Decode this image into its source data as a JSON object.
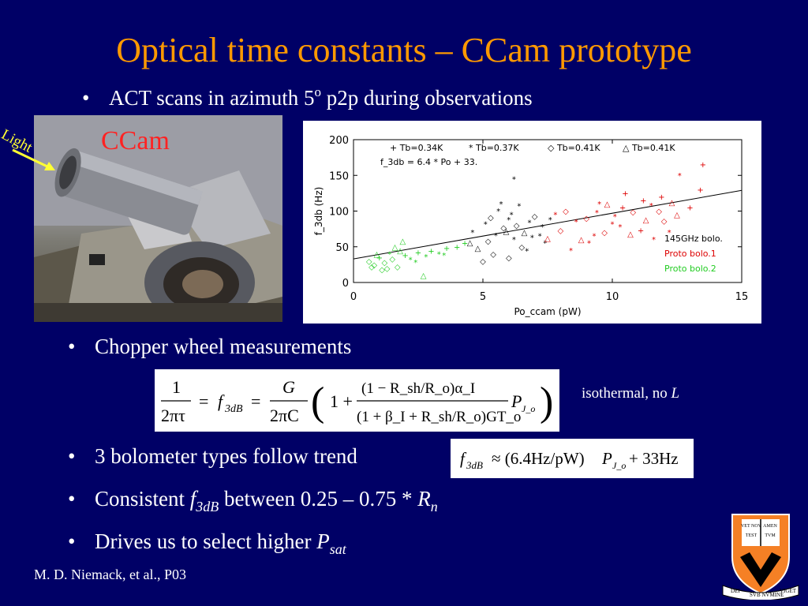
{
  "slide": {
    "title": "Optical time constants – CCam prototype",
    "footer": "M. D.  Niemack, et al., P03",
    "bullet_char": "•"
  },
  "bullets": {
    "b1": {
      "pre": "ACT scans in azimuth 5",
      "sup": "o",
      "post": " p2p during observations"
    },
    "b2": "Chopper wheel measurements",
    "b3": "3 bolometer types follow trend",
    "b4": {
      "pre": "Consistent ",
      "var": "f",
      "sub": "3dB",
      "mid": " between 0.25 – 0.75 * ",
      "var2": "R",
      "sub2": "n"
    },
    "b5": {
      "pre": "Drives us to select higher ",
      "var": "P",
      "sub": "sat"
    }
  },
  "photo": {
    "light_label": "Light",
    "ccam_label": "CCam",
    "arrow_color": "#ffff33",
    "label_color": "#ff2222"
  },
  "equations": {
    "eq1_note_pre": "isothermal, no ",
    "eq1_note_var": "L",
    "eq1": {
      "one": "1",
      "two_pi_tau": "2πτ",
      "eq": "=",
      "f": "f",
      "f_sub": "3dB",
      "G": "G",
      "two_pi_C": "2πC",
      "num": "(1 − R_sh/R_o)α_I",
      "den": "(1 + β_I + R_sh/R_o)GT_o",
      "P": "P",
      "P_sub": "J_o",
      "one_plus": "1 +"
    },
    "eq2": {
      "f": "f",
      "f_sub": "3dB",
      "approx": "≈ (6.4Hz/pW)",
      "P": "P",
      "P_sub": "J_o",
      "tail": "+ 33Hz"
    }
  },
  "chart_data": {
    "type": "scatter",
    "xlabel": "Po_ccam (pW)",
    "ylabel": "f_3db (Hz)",
    "xlim": [
      0,
      15
    ],
    "ylim": [
      0,
      200
    ],
    "xticks": [
      0,
      5,
      10,
      15
    ],
    "yticks": [
      0,
      50,
      100,
      150,
      200
    ],
    "legend_top": [
      "+ Tb=0.34K",
      "* Tb=0.37K",
      "◇ Tb=0.41K",
      "△ Tb=0.41K"
    ],
    "fit_label": "f_3db =   6.4 * Po + 33.",
    "fit": {
      "slope": 6.4,
      "intercept": 33
    },
    "legend_bottom": [
      {
        "label": "145GHz bolo.",
        "color": "#000000"
      },
      {
        "label": "Proto bolo.1",
        "color": "#dd0000"
      },
      {
        "label": "Proto bolo.2",
        "color": "#22cc22"
      }
    ],
    "series": [
      {
        "name": "145GHz bolo.",
        "color": "#000000",
        "points": [
          [
            4.6,
            70
          ],
          [
            5.1,
            82
          ],
          [
            5.3,
            91
          ],
          [
            5.6,
            100
          ],
          [
            5.8,
            77
          ],
          [
            6.0,
            88
          ],
          [
            6.1,
            95
          ],
          [
            6.3,
            80
          ],
          [
            6.4,
            107
          ],
          [
            6.6,
            70
          ],
          [
            6.8,
            84
          ],
          [
            7.0,
            93
          ],
          [
            7.3,
            78
          ],
          [
            7.6,
            88
          ],
          [
            5.2,
            58
          ],
          [
            5.5,
            66
          ],
          [
            5.9,
            72
          ],
          [
            6.2,
            60
          ],
          [
            6.5,
            50
          ],
          [
            6.9,
            63
          ],
          [
            4.8,
            48
          ],
          [
            5.4,
            40
          ],
          [
            6.7,
            44
          ],
          [
            6.2,
            145
          ],
          [
            7.2,
            65
          ],
          [
            5.0,
            30
          ],
          [
            6.0,
            35
          ],
          [
            7.4,
            55
          ],
          [
            4.5,
            56
          ],
          [
            5.7,
            110
          ]
        ],
        "markers": [
          "*",
          "*",
          "◇",
          "*",
          "◇",
          "*",
          "*",
          "◇",
          "*",
          "△",
          "*",
          "◇",
          "*",
          "*",
          "◇",
          "*",
          "△",
          "*",
          "◇",
          "*",
          "△",
          "◇",
          "*",
          "*",
          "*",
          "◇",
          "◇",
          "*",
          "△",
          "*"
        ]
      },
      {
        "name": "Proto bolo.1",
        "color": "#dd0000",
        "points": [
          [
            7.8,
            95
          ],
          [
            8.2,
            100
          ],
          [
            8.6,
            85
          ],
          [
            9.0,
            90
          ],
          [
            9.4,
            98
          ],
          [
            9.8,
            110
          ],
          [
            10.1,
            92
          ],
          [
            10.4,
            105
          ],
          [
            10.8,
            99
          ],
          [
            11.2,
            115
          ],
          [
            11.5,
            108
          ],
          [
            11.9,
            120
          ],
          [
            12.3,
            112
          ],
          [
            12.6,
            150
          ],
          [
            13.5,
            165
          ],
          [
            8.8,
            60
          ],
          [
            9.3,
            65
          ],
          [
            9.7,
            70
          ],
          [
            10.3,
            78
          ],
          [
            10.7,
            68
          ],
          [
            11.1,
            73
          ],
          [
            11.6,
            60
          ],
          [
            12.0,
            86
          ],
          [
            12.5,
            95
          ],
          [
            13.0,
            105
          ],
          [
            13.4,
            130
          ],
          [
            8.0,
            73
          ],
          [
            9.1,
            55
          ],
          [
            10.0,
            82
          ],
          [
            11.3,
            88
          ],
          [
            12.2,
            70
          ],
          [
            10.5,
            125
          ],
          [
            11.8,
            100
          ],
          [
            7.5,
            62
          ],
          [
            8.4,
            45
          ],
          [
            9.5,
            110
          ]
        ],
        "markers": [
          "*",
          "◇",
          "*",
          "◇",
          "*",
          "△",
          "*",
          "+",
          "◇",
          "+",
          "*",
          "+",
          "△",
          "*",
          "+",
          "△",
          "*",
          "◇",
          "*",
          "△",
          "+",
          "*",
          "◇",
          "△",
          "+",
          "+",
          "◇",
          "*",
          "*",
          "△",
          "*",
          "+",
          "◇",
          "△",
          "*",
          "*"
        ]
      },
      {
        "name": "Proto bolo.2",
        "color": "#22cc22",
        "points": [
          [
            0.6,
            30
          ],
          [
            0.8,
            25
          ],
          [
            1.0,
            35
          ],
          [
            1.2,
            28
          ],
          [
            1.4,
            40
          ],
          [
            1.5,
            33
          ],
          [
            1.7,
            22
          ],
          [
            1.8,
            45
          ],
          [
            2.0,
            38
          ],
          [
            2.2,
            32
          ],
          [
            2.5,
            42
          ],
          [
            2.8,
            36
          ],
          [
            3.0,
            44
          ],
          [
            3.3,
            40
          ],
          [
            3.6,
            48
          ],
          [
            4.0,
            50
          ],
          [
            4.3,
            55
          ],
          [
            1.1,
            18
          ],
          [
            0.9,
            40
          ],
          [
            1.6,
            50
          ],
          [
            2.4,
            28
          ],
          [
            3.5,
            38
          ],
          [
            1.3,
            20
          ],
          [
            0.7,
            22
          ],
          [
            2.7,
            10
          ],
          [
            1.9,
            58
          ]
        ],
        "markers": [
          "◇",
          "◇",
          "+",
          "◇",
          "*",
          "◇",
          "◇",
          "△",
          "+",
          "*",
          "+",
          "*",
          "+",
          "*",
          "+",
          "+",
          "+",
          "◇",
          "△",
          "△",
          "*",
          "*",
          "◇",
          "◇",
          "△",
          "△"
        ]
      }
    ]
  },
  "logo": {
    "ribbon_left": "DEI",
    "ribbon_mid": "SVB NVMINE",
    "ribbon_right": "VIGET",
    "book_left": "VET\nNOV\nTEST",
    "book_right": "AMEN\nTVM",
    "orange": "#f58025",
    "black": "#000000"
  }
}
